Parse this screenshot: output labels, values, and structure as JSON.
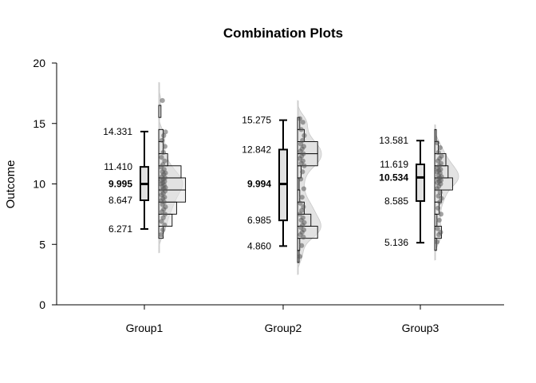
{
  "chart_data": {
    "type": "boxplot-histogram-combination",
    "title": "Combination Plots",
    "xlabel": "",
    "ylabel": "Outcome",
    "ylim": [
      0,
      20
    ],
    "yticks": [
      "0",
      "5",
      "10",
      "15",
      "20"
    ],
    "categories": [
      "Group1",
      "Group2",
      "Group3"
    ],
    "groups": [
      {
        "name": "Group1",
        "stats": {
          "lower_whisker": 6.271,
          "q1": 8.647,
          "median": 9.995,
          "q3": 11.41,
          "upper_whisker": 14.331
        },
        "stat_labels": [
          "14.331",
          "11.410",
          "9.995",
          "8.647",
          "6.271"
        ],
        "hist_bins": [
          {
            "from": 5.5,
            "to": 6.5,
            "count": 1
          },
          {
            "from": 6.5,
            "to": 7.5,
            "count": 3
          },
          {
            "from": 7.5,
            "to": 8.5,
            "count": 4
          },
          {
            "from": 8.5,
            "to": 9.5,
            "count": 6
          },
          {
            "from": 9.5,
            "to": 10.5,
            "count": 6
          },
          {
            "from": 10.5,
            "to": 11.5,
            "count": 5
          },
          {
            "from": 11.5,
            "to": 12.5,
            "count": 2
          },
          {
            "from": 12.5,
            "to": 13.5,
            "count": 1
          },
          {
            "from": 13.5,
            "to": 14.5,
            "count": 1
          },
          {
            "from": 15.5,
            "to": 16.5,
            "count": 0.5
          }
        ],
        "points": [
          5.8,
          6.2,
          6.6,
          6.9,
          7.2,
          7.5,
          7.7,
          7.9,
          8.1,
          8.3,
          8.5,
          8.6,
          8.8,
          8.9,
          9.1,
          9.2,
          9.4,
          9.5,
          9.6,
          9.7,
          9.8,
          9.9,
          10.0,
          10.1,
          10.2,
          10.3,
          10.4,
          10.5,
          10.6,
          10.8,
          10.9,
          11.0,
          11.2,
          11.4,
          11.6,
          11.9,
          12.2,
          12.6,
          13.1,
          13.6,
          14.0,
          14.3,
          16.9
        ]
      },
      {
        "name": "Group2",
        "stats": {
          "lower_whisker": 4.86,
          "q1": 6.985,
          "median": 9.994,
          "q3": 12.842,
          "upper_whisker": 15.275
        },
        "stat_labels": [
          "15.275",
          "12.842",
          "9.994",
          "6.985",
          "4.860"
        ],
        "hist_bins": [
          {
            "from": 3.5,
            "to": 4.5,
            "count": 0.3
          },
          {
            "from": 4.5,
            "to": 5.5,
            "count": 0.5
          },
          {
            "from": 5.5,
            "to": 6.5,
            "count": 4.5
          },
          {
            "from": 6.5,
            "to": 7.5,
            "count": 3
          },
          {
            "from": 7.5,
            "to": 8.5,
            "count": 1.5
          },
          {
            "from": 8.5,
            "to": 9.5,
            "count": 0.5
          },
          {
            "from": 9.5,
            "to": 10.5,
            "count": 0.3
          },
          {
            "from": 10.5,
            "to": 11.5,
            "count": 0.8
          },
          {
            "from": 11.5,
            "to": 12.5,
            "count": 4.5
          },
          {
            "from": 12.5,
            "to": 13.5,
            "count": 4.5
          },
          {
            "from": 13.5,
            "to": 14.5,
            "count": 1.5
          },
          {
            "from": 14.5,
            "to": 15.5,
            "count": 0.5
          }
        ],
        "points": [
          4.0,
          4.9,
          5.6,
          5.8,
          6.0,
          6.2,
          6.4,
          6.6,
          6.8,
          7.0,
          7.2,
          7.5,
          7.8,
          8.1,
          8.4,
          8.9,
          9.6,
          10.4,
          11.0,
          11.5,
          11.7,
          11.9,
          12.1,
          12.3,
          12.5,
          12.7,
          12.9,
          13.1,
          13.3,
          13.6,
          14.0,
          14.5,
          15.1,
          15.4
        ]
      },
      {
        "name": "Group3",
        "stats": {
          "lower_whisker": 5.136,
          "q1": 8.585,
          "median": 10.534,
          "q3": 11.619,
          "upper_whisker": 13.581
        },
        "stat_labels": [
          "13.581",
          "11.619",
          "10.534",
          "8.585",
          "5.136"
        ],
        "hist_bins": [
          {
            "from": 4.5,
            "to": 5.5,
            "count": 0.4
          },
          {
            "from": 5.5,
            "to": 6.5,
            "count": 1.5
          },
          {
            "from": 6.5,
            "to": 7.5,
            "count": 0.5
          },
          {
            "from": 7.5,
            "to": 8.5,
            "count": 1
          },
          {
            "from": 8.5,
            "to": 9.5,
            "count": 1.5
          },
          {
            "from": 9.5,
            "to": 10.5,
            "count": 4
          },
          {
            "from": 10.5,
            "to": 11.5,
            "count": 3
          },
          {
            "from": 11.5,
            "to": 12.5,
            "count": 2.5
          },
          {
            "from": 12.5,
            "to": 13.5,
            "count": 0.8
          },
          {
            "from": 13.5,
            "to": 14.5,
            "count": 0.3
          }
        ],
        "points": [
          5.2,
          5.8,
          6.0,
          6.3,
          7.0,
          7.5,
          8.0,
          8.5,
          8.8,
          9.0,
          9.3,
          9.6,
          9.8,
          10.0,
          10.1,
          10.2,
          10.3,
          10.4,
          10.5,
          10.6,
          10.7,
          10.9,
          11.0,
          11.1,
          11.2,
          11.3,
          11.5,
          11.7,
          11.9,
          12.1,
          12.3,
          12.6,
          13.0,
          13.4
        ]
      }
    ],
    "grid": false,
    "legend": "none"
  }
}
